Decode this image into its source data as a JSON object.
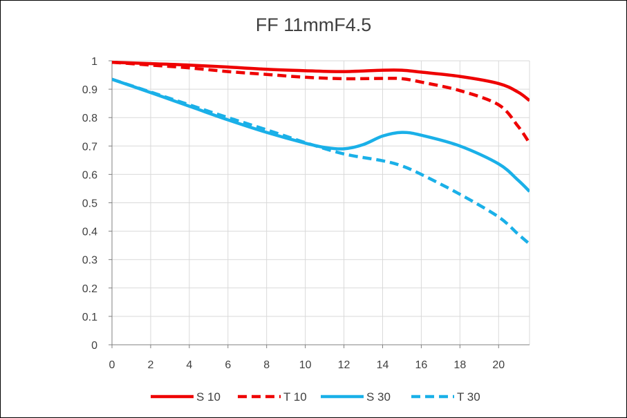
{
  "chart_data": {
    "type": "line",
    "title": "FF 11mmF4.5",
    "xlabel": "",
    "ylabel": "",
    "xlim": [
      0,
      21.6
    ],
    "ylim": [
      0,
      1
    ],
    "x_ticks": [
      0,
      2,
      4,
      6,
      8,
      10,
      12,
      14,
      16,
      18,
      20
    ],
    "y_ticks": [
      0,
      0.1,
      0.2,
      0.3,
      0.4,
      0.5,
      0.6,
      0.7,
      0.8,
      0.9,
      1
    ],
    "grid": true,
    "legend_position": "bottom",
    "series": [
      {
        "name": "S 10",
        "color": "#ee0000",
        "dash": "solid",
        "points": [
          [
            0,
            0.995
          ],
          [
            2,
            0.99
          ],
          [
            4,
            0.985
          ],
          [
            6,
            0.978
          ],
          [
            8,
            0.97
          ],
          [
            10,
            0.965
          ],
          [
            12,
            0.962
          ],
          [
            14,
            0.967
          ],
          [
            15,
            0.967
          ],
          [
            16,
            0.96
          ],
          [
            18,
            0.945
          ],
          [
            20,
            0.92
          ],
          [
            21,
            0.89
          ],
          [
            21.6,
            0.86
          ]
        ]
      },
      {
        "name": "T 10",
        "color": "#ee0000",
        "dash": "dashed",
        "points": [
          [
            0,
            0.995
          ],
          [
            2,
            0.985
          ],
          [
            4,
            0.975
          ],
          [
            6,
            0.962
          ],
          [
            8,
            0.952
          ],
          [
            10,
            0.942
          ],
          [
            12,
            0.937
          ],
          [
            14,
            0.938
          ],
          [
            15,
            0.937
          ],
          [
            16,
            0.925
          ],
          [
            18,
            0.895
          ],
          [
            20,
            0.845
          ],
          [
            21,
            0.77
          ],
          [
            21.6,
            0.71
          ]
        ]
      },
      {
        "name": "S 30",
        "color": "#1ab0e8",
        "dash": "solid",
        "points": [
          [
            0,
            0.935
          ],
          [
            2,
            0.888
          ],
          [
            4,
            0.84
          ],
          [
            6,
            0.792
          ],
          [
            8,
            0.748
          ],
          [
            10,
            0.71
          ],
          [
            11,
            0.695
          ],
          [
            12,
            0.69
          ],
          [
            13,
            0.705
          ],
          [
            14,
            0.735
          ],
          [
            15,
            0.748
          ],
          [
            16,
            0.738
          ],
          [
            18,
            0.7
          ],
          [
            20,
            0.637
          ],
          [
            21,
            0.58
          ],
          [
            21.6,
            0.54
          ]
        ]
      },
      {
        "name": "T 30",
        "color": "#1ab0e8",
        "dash": "dashed",
        "points": [
          [
            0,
            0.935
          ],
          [
            2,
            0.89
          ],
          [
            4,
            0.845
          ],
          [
            6,
            0.8
          ],
          [
            8,
            0.757
          ],
          [
            10,
            0.712
          ],
          [
            12,
            0.672
          ],
          [
            14,
            0.648
          ],
          [
            15,
            0.63
          ],
          [
            16,
            0.6
          ],
          [
            18,
            0.53
          ],
          [
            20,
            0.45
          ],
          [
            21,
            0.39
          ],
          [
            21.6,
            0.355
          ]
        ]
      }
    ]
  }
}
